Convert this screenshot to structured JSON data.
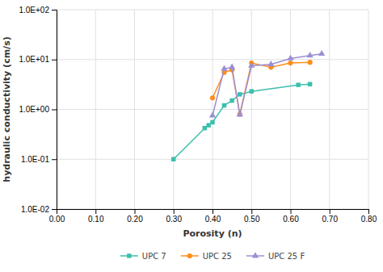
{
  "chart_data": {
    "type": "line",
    "xlabel": "Porosity (n)",
    "ylabel": "hydraulic conductivity (cm/s)",
    "xlim": [
      0.0,
      0.8
    ],
    "ylim": [
      0.01,
      100
    ],
    "xticks": [
      {
        "value": 0.0,
        "label": "0.00"
      },
      {
        "value": 0.1,
        "label": "0.10"
      },
      {
        "value": 0.2,
        "label": "0.20"
      },
      {
        "value": 0.3,
        "label": "0.30"
      },
      {
        "value": 0.4,
        "label": "0.40"
      },
      {
        "value": 0.5,
        "label": "0.50"
      },
      {
        "value": 0.6,
        "label": "0.60"
      },
      {
        "value": 0.7,
        "label": "0.70"
      },
      {
        "value": 0.8,
        "label": "0.80"
      }
    ],
    "yticks": [
      {
        "value": 0.01,
        "label": "1.0E-02"
      },
      {
        "value": 0.1,
        "label": "1.0E-01"
      },
      {
        "value": 1.0,
        "label": "1.0E+00"
      },
      {
        "value": 10.0,
        "label": "1.0E+01"
      },
      {
        "value": 100.0,
        "label": "1.0E+02"
      }
    ],
    "log": "y",
    "grid": true,
    "legend": "bottom",
    "series": [
      {
        "name": "UPC 7",
        "color": "#3dbfad",
        "marker": "square",
        "x": [
          0.3,
          0.38,
          0.39,
          0.4,
          0.43,
          0.45,
          0.47,
          0.5,
          0.62,
          0.65
        ],
        "values": [
          0.1,
          0.42,
          0.48,
          0.55,
          1.2,
          1.5,
          2.0,
          2.3,
          3.1,
          3.2
        ]
      },
      {
        "name": "UPC 25",
        "color": "#ff8c1a",
        "marker": "circle",
        "x": [
          0.4,
          0.43,
          0.45,
          0.47,
          0.5,
          0.55,
          0.6,
          0.65
        ],
        "values": [
          1.7,
          5.5,
          6.2,
          0.8,
          8.5,
          7.0,
          8.5,
          8.8
        ]
      },
      {
        "name": "UPC 25 F",
        "color": "#9b8fd4",
        "marker": "triangle",
        "x": [
          0.4,
          0.43,
          0.45,
          0.47,
          0.5,
          0.55,
          0.6,
          0.65,
          0.68
        ],
        "values": [
          0.75,
          6.5,
          7.0,
          0.78,
          7.5,
          8.0,
          10.5,
          12.0,
          13.0
        ]
      }
    ]
  }
}
